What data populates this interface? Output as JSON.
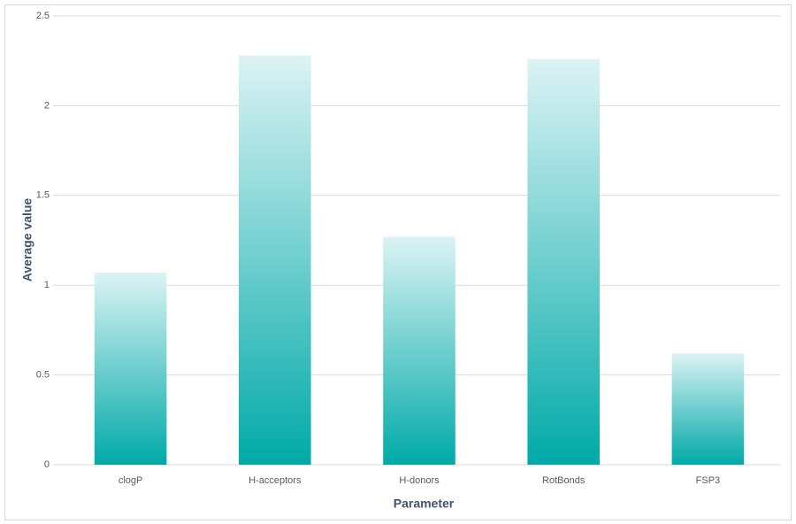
{
  "chart_data": {
    "type": "bar",
    "x_label": "Parameter",
    "y_label": "Average value",
    "categories": [
      "clogP",
      "H-acceptors",
      "H-donors",
      "RotBonds",
      "FSP3"
    ],
    "values": [
      1.07,
      2.28,
      1.27,
      2.26,
      0.62
    ],
    "color": "#00aaa8",
    "ylim": [
      0,
      2.5
    ],
    "yticks": [
      0,
      0.5,
      1,
      1.5,
      2,
      2.5
    ],
    "grid": true
  }
}
